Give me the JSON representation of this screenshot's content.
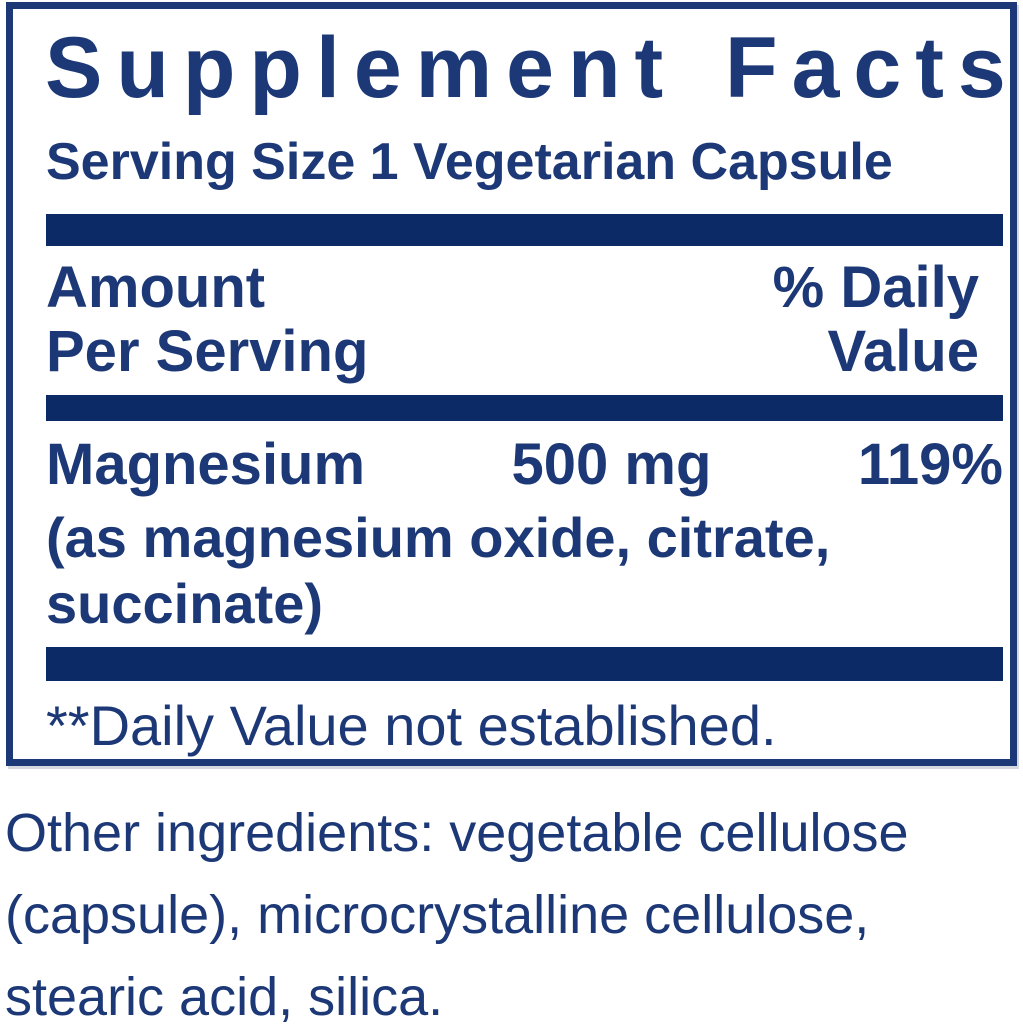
{
  "colors": {
    "navy_text": "#1c3876",
    "divider_bar": "#0c2a66",
    "background": "#ffffff"
  },
  "facts": {
    "title": "Supplement Facts",
    "serving_size": "Serving Size 1 Vegetarian Capsule",
    "columns": {
      "amount_line1": "Amount",
      "amount_line2": "Per Serving",
      "dv_line1": "% Daily",
      "dv_line2": "Value"
    },
    "nutrients": [
      {
        "name": "Magnesium",
        "amount": "500 mg",
        "daily_value": "119%",
        "forms": "(as magnesium oxide, citrate, succinate)",
        "forms_lines": [
          "(as magnesium oxide, citrate,",
          "succinate)"
        ]
      }
    ],
    "footnote": "**Daily Value not established.",
    "other_ingredients": "Other ingredients: vegetable cellulose (capsule), microcrystalline cellulose, stearic acid, silica.",
    "other_ingredients_lines": [
      "Other ingredients: vegetable cellulose",
      "(capsule), microcrystalline cellulose,",
      "stearic acid, silica."
    ]
  }
}
